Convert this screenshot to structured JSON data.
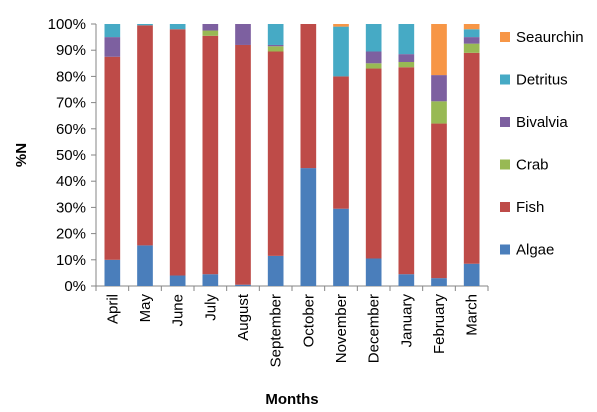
{
  "chart_data": {
    "type": "bar",
    "stacked": true,
    "percent": true,
    "xlabel": "Months",
    "ylabel": "%N",
    "ylim": [
      0,
      100
    ],
    "yticks": [
      "0%",
      "10%",
      "20%",
      "30%",
      "40%",
      "50%",
      "60%",
      "70%",
      "80%",
      "90%",
      "100%"
    ],
    "categories": [
      "April",
      "May",
      "June",
      "July",
      "August",
      "September",
      "October",
      "November",
      "December",
      "January",
      "February",
      "March"
    ],
    "series": [
      {
        "name": "Algae",
        "color": "#4a7ebb",
        "values": [
          10,
          15.5,
          4,
          4.5,
          0.5,
          11.5,
          45,
          29.5,
          10.5,
          4.5,
          3,
          8.5
        ]
      },
      {
        "name": "Fish",
        "color": "#be4b48",
        "values": [
          77.5,
          84,
          94,
          91,
          91.5,
          78,
          55,
          50.5,
          72.5,
          79,
          59,
          80.5
        ]
      },
      {
        "name": "Crab",
        "color": "#98b954",
        "values": [
          0,
          0,
          0,
          2,
          0,
          2,
          0,
          0,
          2,
          2,
          8.5,
          3.5
        ]
      },
      {
        "name": "Bivalvia",
        "color": "#7d60a0",
        "values": [
          7.5,
          0,
          0,
          2.5,
          8,
          0.5,
          0,
          0,
          4.5,
          3,
          10,
          2.5
        ]
      },
      {
        "name": "Detritus",
        "color": "#46aac5",
        "values": [
          5,
          0.5,
          2,
          0,
          0,
          8,
          0,
          19,
          10.5,
          11.5,
          0,
          3
        ]
      },
      {
        "name": "Seaurchin",
        "color": "#f79646",
        "values": [
          0,
          0,
          0,
          0,
          0,
          0,
          0,
          1,
          0,
          0,
          19.5,
          2
        ]
      }
    ],
    "legend": "right"
  }
}
